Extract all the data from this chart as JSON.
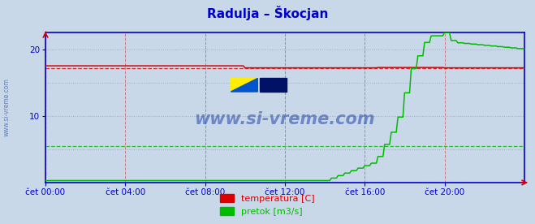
{
  "title": "Radulja – Škocjan",
  "title_color": "#0000cc",
  "bg_color": "#c8d8e8",
  "plot_bg_color": "#c8d8e8",
  "watermark": "www.si-vreme.com",
  "watermark_color": "#2244aa",
  "x_ticks": [
    0,
    4,
    8,
    12,
    16,
    20
  ],
  "x_tick_labels": [
    "čet 00:00",
    "čet 04:00",
    "čet 08:00",
    "čet 12:00",
    "čet 16:00",
    "čet 20:00"
  ],
  "y_ticks": [
    10,
    20
  ],
  "ylim": [
    0,
    22.5
  ],
  "xlim": [
    0,
    24
  ],
  "temp_color": "#dd0000",
  "flow_color": "#00bb00",
  "temp_ref_y": 17.2,
  "flow_ref_y": 5.5,
  "axis_color": "#0000cc",
  "grid_color_v": "#cc5555",
  "grid_color_h": "#9999bb",
  "legend_temp_label": "temperatura [C]",
  "legend_flow_label": "pretok [m3/s]",
  "n_points": 289
}
